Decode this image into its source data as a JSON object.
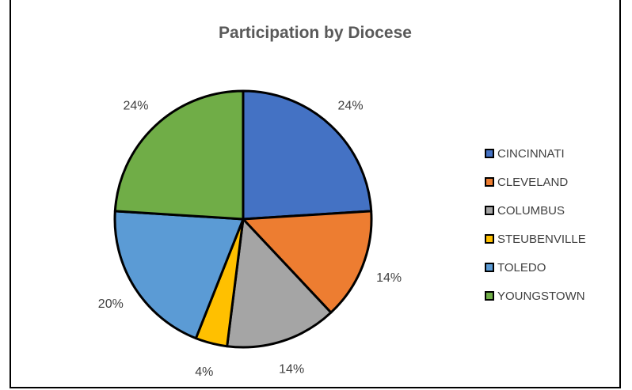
{
  "chart_data": {
    "type": "pie",
    "title": "Participation by Diocese",
    "categories": [
      "CINCINNATI",
      "CLEVELAND",
      "COLUMBUS",
      "STEUBENVILLE",
      "TOLEDO",
      "YOUNGSTOWN"
    ],
    "values": [
      24,
      14,
      14,
      4,
      20,
      24
    ],
    "labels": [
      "24%",
      "14%",
      "14%",
      "4%",
      "20%",
      "24%"
    ],
    "colors": [
      "#4472C4",
      "#ED7D31",
      "#A5A5A5",
      "#FFC000",
      "#5B9BD5",
      "#70AD47"
    ],
    "legend_position": "right"
  }
}
